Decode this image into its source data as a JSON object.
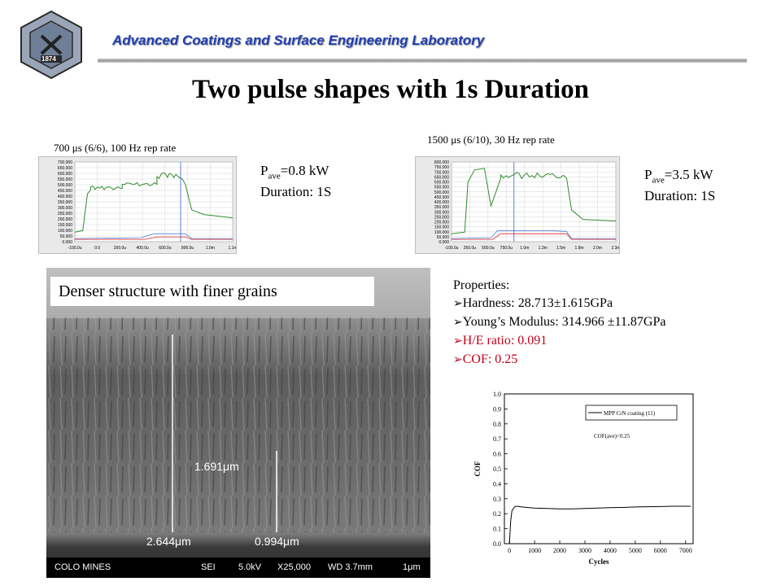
{
  "header": {
    "lab_name": "Advanced Coatings and Surface Engineering Laboratory",
    "logo_text": {
      "top": "SCHOOL OF MINES",
      "bottom": "COLORADO",
      "year": "1874"
    }
  },
  "title": "Two pulse shapes with 1s Duration",
  "pulse_left": {
    "caption": "700 μs (6/6), 100 Hz rep rate",
    "pave_label": "P",
    "pave_sub": "ave",
    "pave_value": "=0.8 kW",
    "duration": "Duration: 1S",
    "y_ticks": [
      "700.000",
      "650.000",
      "600.000",
      "550.000",
      "500.000",
      "450.000",
      "400.000",
      "350.000",
      "300.000",
      "250.000",
      "200.000",
      "150.000",
      "100.000",
      "50.000",
      "0.000"
    ],
    "x_ticks": [
      "-100.0u",
      "0.0",
      "200.0u",
      "400.0u",
      "600.0u",
      "800.0u",
      "1.0m",
      "1.1m"
    ]
  },
  "pulse_right": {
    "caption": "1500 μs (6/10), 30 Hz rep rate",
    "pave_label": "P",
    "pave_sub": "ave",
    "pave_value": "=3.5 kW",
    "duration": "Duration: 1S",
    "y_ticks": [
      "800.000",
      "750.000",
      "700.000",
      "650.000",
      "600.000",
      "550.000",
      "500.000",
      "450.000",
      "400.000",
      "350.000",
      "300.000",
      "250.000",
      "200.000",
      "150.000",
      "100.000",
      "50.000",
      "0.000"
    ],
    "x_ticks": [
      "-100.0u",
      "250.0u",
      "500.0u",
      "750.0u",
      "1.0m",
      "1.3m",
      "1.5m",
      "1.8m",
      "2.0m",
      "2.3m"
    ]
  },
  "sem": {
    "label": "Denser structure with finer grains",
    "measure_1": "1.691μm",
    "measure_2": "2.644μm",
    "measure_3": "0.994μm",
    "footer": [
      "COLO MINES",
      "SEI",
      "5.0kV",
      "X25,000",
      "WD 3.7mm",
      "1μm"
    ]
  },
  "properties": {
    "heading": "Properties:",
    "items": [
      {
        "text": "Hardness: 28.713±1.615GPa",
        "color": "#000000"
      },
      {
        "text": "Young’s Modulus: 314.966 ±11.87GPa",
        "color": "#000000"
      },
      {
        "text": "H/E ratio: 0.091",
        "color": "#c0001a"
      },
      {
        "text": "COF: 0.25",
        "color": "#c0001a"
      }
    ]
  },
  "chart_data": {
    "type": "line",
    "title": "",
    "xlabel": "Cycles",
    "ylabel": "COF",
    "xlim": [
      -200,
      7300
    ],
    "ylim": [
      0.0,
      1.0
    ],
    "x_ticks": [
      0,
      1000,
      2000,
      3000,
      4000,
      5000,
      6000,
      7000
    ],
    "y_ticks": [
      0.0,
      0.1,
      0.2,
      0.3,
      0.4,
      0.5,
      0.6,
      0.7,
      0.8,
      0.9,
      1.0
    ],
    "legend_position": "top-right",
    "annotation": "COF(ave)=0.25",
    "series": [
      {
        "name": "MPP CrN coating (11)",
        "x": [
          0,
          50,
          100,
          200,
          300,
          500,
          800,
          1000,
          1500,
          2000,
          2500,
          3000,
          3500,
          4000,
          4500,
          5000,
          5500,
          6000,
          6500,
          7000,
          7200
        ],
        "y": [
          0.0,
          0.15,
          0.22,
          0.245,
          0.25,
          0.245,
          0.24,
          0.238,
          0.235,
          0.232,
          0.232,
          0.235,
          0.238,
          0.24,
          0.242,
          0.245,
          0.247,
          0.248,
          0.25,
          0.25,
          0.25
        ]
      }
    ]
  }
}
